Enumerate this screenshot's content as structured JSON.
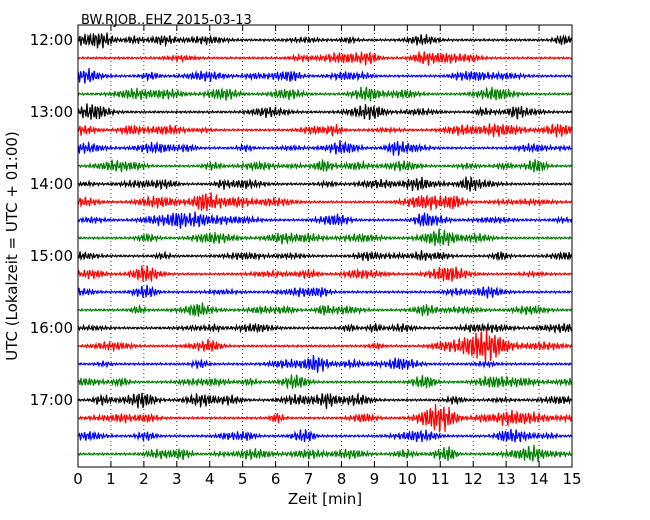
{
  "chart_data": {
    "type": "line",
    "title": "BW.RJOB..EHZ 2015-03-13",
    "xlabel": "Zeit  [min]",
    "ylabel": "UTC (Lokalzeit = UTC + 01:00)",
    "xlim": [
      0,
      15
    ],
    "x_ticks": [
      0,
      1,
      2,
      3,
      4,
      5,
      6,
      7,
      8,
      9,
      10,
      11,
      12,
      13,
      14,
      15
    ],
    "y_ticks": [
      "12:00",
      "13:00",
      "14:00",
      "15:00",
      "16:00",
      "17:00"
    ],
    "grid": "vertical dotted at each minute",
    "trace_interval_min": 15,
    "traces": [
      {
        "start": "12:00",
        "color": "#000000"
      },
      {
        "start": "12:15",
        "color": "#ff0000"
      },
      {
        "start": "12:30",
        "color": "#0000ff"
      },
      {
        "start": "12:45",
        "color": "#008000"
      },
      {
        "start": "13:00",
        "color": "#000000"
      },
      {
        "start": "13:15",
        "color": "#ff0000"
      },
      {
        "start": "13:30",
        "color": "#0000ff"
      },
      {
        "start": "13:45",
        "color": "#008000"
      },
      {
        "start": "14:00",
        "color": "#000000"
      },
      {
        "start": "14:15",
        "color": "#ff0000"
      },
      {
        "start": "14:30",
        "color": "#0000ff"
      },
      {
        "start": "14:45",
        "color": "#008000"
      },
      {
        "start": "15:00",
        "color": "#000000"
      },
      {
        "start": "15:15",
        "color": "#ff0000"
      },
      {
        "start": "15:30",
        "color": "#0000ff"
      },
      {
        "start": "15:45",
        "color": "#008000"
      },
      {
        "start": "16:00",
        "color": "#000000"
      },
      {
        "start": "16:15",
        "color": "#ff0000"
      },
      {
        "start": "16:30",
        "color": "#0000ff"
      },
      {
        "start": "16:45",
        "color": "#008000"
      },
      {
        "start": "17:00",
        "color": "#000000"
      },
      {
        "start": "17:15",
        "color": "#ff0000"
      },
      {
        "start": "17:30",
        "color": "#0000ff"
      },
      {
        "start": "17:45",
        "color": "#008000"
      }
    ]
  }
}
